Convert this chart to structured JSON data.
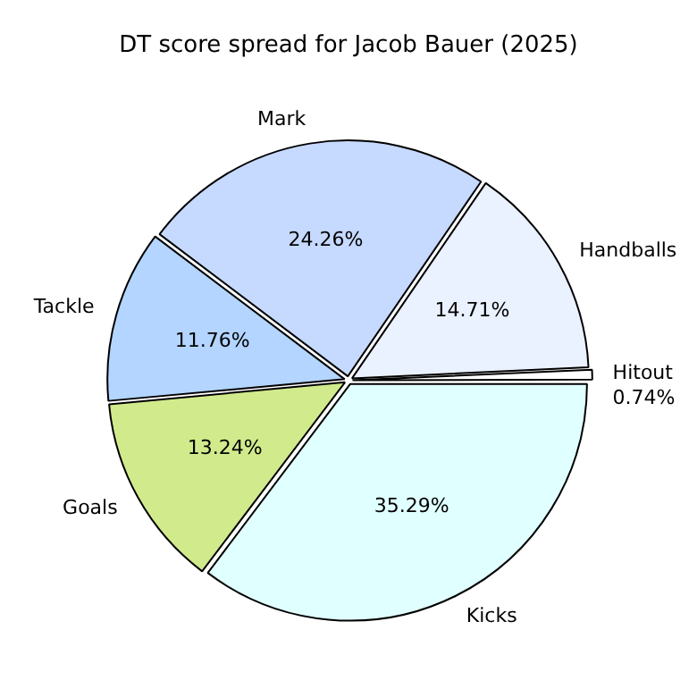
{
  "chart_data": {
    "type": "pie",
    "title": "DT score spread for Jacob Bauer (2025)",
    "categories": [
      "Kicks",
      "Goals",
      "Tackle",
      "Mark",
      "Handballs",
      "Hitout"
    ],
    "values": [
      35.29,
      13.24,
      11.76,
      24.26,
      14.71,
      0.74
    ],
    "colors": [
      "#e0ffff",
      "#d1eb8c",
      "#b3d5ff",
      "#c6d9ff",
      "#eaf1ff",
      "#ffffff"
    ],
    "value_labels": [
      "35.29%",
      "13.24%",
      "11.76%",
      "24.26%",
      "14.71%",
      "0.74%"
    ],
    "legend": false
  }
}
